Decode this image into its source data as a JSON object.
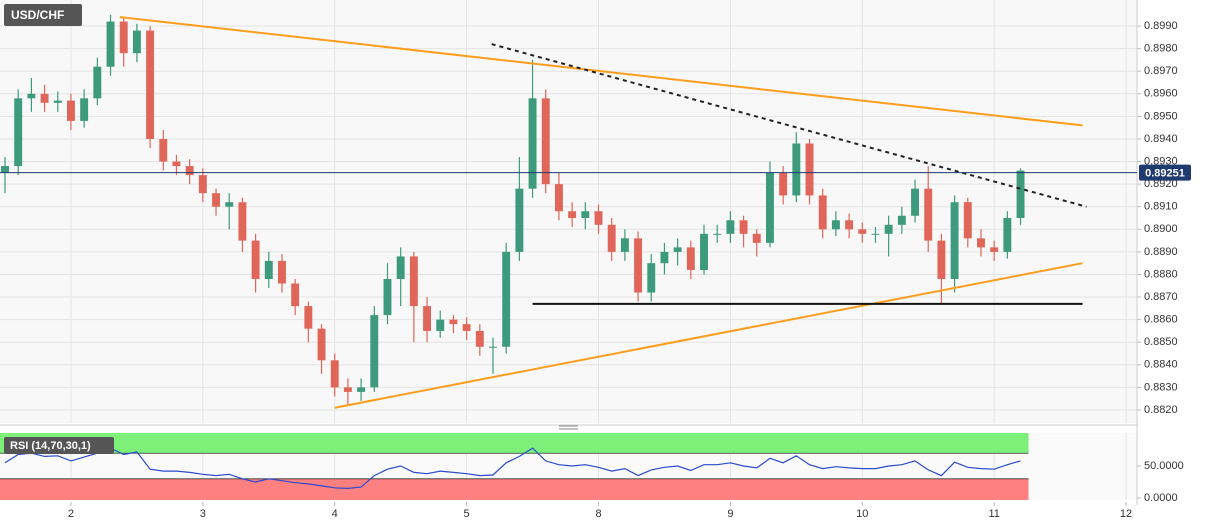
{
  "chart_data": [
    {
      "type": "candlestick",
      "title": "USD/CHF",
      "x": [
        -0.5,
        -0.4,
        -0.3,
        -0.2,
        -0.1,
        0,
        0.1,
        0.2,
        0.3,
        0.4,
        0.5,
        0.6,
        0.7,
        0.8,
        0.9,
        1,
        1.1,
        1.2,
        1.3,
        1.4,
        1.5,
        1.6,
        1.7,
        1.8,
        1.9,
        2,
        2.1,
        2.2,
        2.3,
        2.4,
        2.5,
        2.6,
        2.7,
        2.8,
        2.9,
        3,
        3.1,
        3.2,
        3.3,
        3.4,
        3.5,
        3.6,
        3.7,
        3.8,
        3.9,
        4,
        4.1,
        4.2,
        4.3,
        4.4,
        4.5,
        4.6,
        4.7,
        4.8,
        4.9,
        5,
        5.1,
        5.2,
        5.3,
        5.4,
        5.5,
        5.6,
        5.7,
        5.8,
        5.9,
        6,
        6.1,
        6.2,
        6.3,
        6.4,
        6.5,
        6.6,
        6.7,
        6.8,
        6.9,
        7,
        7.1,
        7.2
      ],
      "open": [
        0.8925,
        0.8928,
        0.8958,
        0.896,
        0.8956,
        0.8957,
        0.8948,
        0.8958,
        0.8972,
        0.8992,
        0.8978,
        0.8988,
        0.894,
        0.893,
        0.8928,
        0.8924,
        0.8916,
        0.891,
        0.8912,
        0.8895,
        0.8878,
        0.8886,
        0.8876,
        0.8866,
        0.8856,
        0.8842,
        0.883,
        0.8828,
        0.883,
        0.8862,
        0.8878,
        0.8888,
        0.8866,
        0.8855,
        0.886,
        0.8858,
        0.8855,
        0.8848,
        0.8848,
        0.889,
        0.8918,
        0.8958,
        0.892,
        0.8908,
        0.8905,
        0.8908,
        0.8902,
        0.889,
        0.8896,
        0.8872,
        0.8885,
        0.889,
        0.8892,
        0.8882,
        0.8898,
        0.8898,
        0.8904,
        0.8898,
        0.8894,
        0.8925,
        0.8915,
        0.8938,
        0.8915,
        0.89,
        0.8904,
        0.89,
        0.8898,
        0.8898,
        0.8902,
        0.8906,
        0.8918,
        0.8895,
        0.8878,
        0.8912,
        0.8896,
        0.8892,
        0.889,
        0.8905
      ],
      "high": [
        0.8932,
        0.8962,
        0.8967,
        0.8964,
        0.8961,
        0.896,
        0.8962,
        0.8976,
        0.8995,
        0.8994,
        0.8991,
        0.899,
        0.8944,
        0.8933,
        0.8931,
        0.8927,
        0.8918,
        0.8916,
        0.8914,
        0.8898,
        0.889,
        0.8889,
        0.8878,
        0.8868,
        0.8858,
        0.8845,
        0.8834,
        0.8834,
        0.8866,
        0.8885,
        0.8892,
        0.889,
        0.887,
        0.8864,
        0.8862,
        0.8861,
        0.8858,
        0.8852,
        0.8894,
        0.8932,
        0.8975,
        0.8962,
        0.8925,
        0.8912,
        0.8912,
        0.8911,
        0.8905,
        0.89,
        0.8899,
        0.8889,
        0.8894,
        0.8896,
        0.8895,
        0.8902,
        0.8902,
        0.8908,
        0.8906,
        0.89,
        0.893,
        0.8928,
        0.8943,
        0.894,
        0.8918,
        0.8908,
        0.8907,
        0.8903,
        0.8901,
        0.8906,
        0.891,
        0.8922,
        0.8928,
        0.8898,
        0.8915,
        0.8914,
        0.89,
        0.8895,
        0.8908,
        0.8927
      ],
      "low": [
        0.8916,
        0.8924,
        0.8952,
        0.8952,
        0.8952,
        0.8944,
        0.8945,
        0.8955,
        0.8968,
        0.8972,
        0.8974,
        0.8936,
        0.8926,
        0.8924,
        0.892,
        0.8912,
        0.8906,
        0.89,
        0.889,
        0.8872,
        0.8874,
        0.8872,
        0.8862,
        0.885,
        0.8836,
        0.8826,
        0.8822,
        0.8824,
        0.8828,
        0.8858,
        0.8866,
        0.885,
        0.885,
        0.8852,
        0.8854,
        0.8851,
        0.8844,
        0.8836,
        0.8845,
        0.8886,
        0.8914,
        0.8916,
        0.8904,
        0.8901,
        0.89,
        0.8898,
        0.8886,
        0.8886,
        0.8868,
        0.8868,
        0.888,
        0.8884,
        0.8878,
        0.888,
        0.8894,
        0.8894,
        0.8892,
        0.8888,
        0.8892,
        0.8911,
        0.8912,
        0.8911,
        0.8896,
        0.8897,
        0.8896,
        0.8894,
        0.8894,
        0.8888,
        0.8898,
        0.8903,
        0.889,
        0.8867,
        0.8872,
        0.8892,
        0.8888,
        0.8886,
        0.8887,
        0.8902
      ],
      "close": [
        0.8928,
        0.8958,
        0.896,
        0.8956,
        0.8957,
        0.8948,
        0.8958,
        0.8972,
        0.8992,
        0.8978,
        0.8988,
        0.894,
        0.893,
        0.8928,
        0.8924,
        0.8916,
        0.891,
        0.8912,
        0.8895,
        0.8878,
        0.8886,
        0.8876,
        0.8866,
        0.8856,
        0.8842,
        0.883,
        0.8828,
        0.883,
        0.8862,
        0.8878,
        0.8888,
        0.8866,
        0.8855,
        0.886,
        0.8858,
        0.8855,
        0.8848,
        0.8848,
        0.889,
        0.8918,
        0.8958,
        0.892,
        0.8908,
        0.8905,
        0.8908,
        0.8902,
        0.889,
        0.8896,
        0.8872,
        0.8885,
        0.889,
        0.8892,
        0.8882,
        0.8898,
        0.8898,
        0.8904,
        0.8898,
        0.8894,
        0.8925,
        0.8915,
        0.8938,
        0.8915,
        0.89,
        0.8904,
        0.89,
        0.8898,
        0.8898,
        0.8902,
        0.8906,
        0.8918,
        0.8895,
        0.8878,
        0.8912,
        0.8896,
        0.8892,
        0.889,
        0.8905,
        0.8926
      ],
      "up_color": "#3d9a7c",
      "down_color": "#e0665a",
      "xlim": [
        -0.538,
        8.083
      ],
      "xticks": [
        {
          "value": 0,
          "label": "2"
        },
        {
          "value": 1,
          "label": "3"
        },
        {
          "value": 2,
          "label": "4"
        },
        {
          "value": 3,
          "label": "5"
        },
        {
          "value": 4,
          "label": "8"
        },
        {
          "value": 5,
          "label": "9"
        },
        {
          "value": 6,
          "label": "10"
        },
        {
          "value": 7,
          "label": "11"
        },
        {
          "value": 8,
          "label": "12"
        }
      ],
      "ylim": [
        0.881423,
        0.900154
      ],
      "yticks": [
        {
          "value": 0.882,
          "label": "0.8820"
        },
        {
          "value": 0.883,
          "label": "0.8830"
        },
        {
          "value": 0.884,
          "label": "0.8840"
        },
        {
          "value": 0.885,
          "label": "0.8850"
        },
        {
          "value": 0.886,
          "label": "0.8860"
        },
        {
          "value": 0.887,
          "label": "0.8870"
        },
        {
          "value": 0.888,
          "label": "0.8880"
        },
        {
          "value": 0.889,
          "label": "0.8890"
        },
        {
          "value": 0.89,
          "label": "0.8900"
        },
        {
          "value": 0.891,
          "label": "0.8910"
        },
        {
          "value": 0.892,
          "label": "0.8920"
        },
        {
          "value": 0.893,
          "label": "0.8930"
        },
        {
          "value": 0.894,
          "label": "0.8940"
        },
        {
          "value": 0.895,
          "label": "0.8950"
        },
        {
          "value": 0.896,
          "label": "0.8960"
        },
        {
          "value": 0.897,
          "label": "0.8970"
        },
        {
          "value": 0.898,
          "label": "0.8980"
        },
        {
          "value": 0.899,
          "label": "0.8990"
        }
      ],
      "grid": true,
      "last_price": 0.89251,
      "last_price_color": "#1f3a6e",
      "trend_lines": [
        {
          "x": [
            0.37,
            7.67
          ],
          "y": [
            0.8994,
            0.8946
          ],
          "color": "#ff9d1c",
          "style": "solid"
        },
        {
          "x": [
            2.0,
            7.67
          ],
          "y": [
            0.8821,
            0.8885
          ],
          "color": "#ff9d1c",
          "style": "solid"
        },
        {
          "x": [
            3.19,
            7.7
          ],
          "y": [
            0.8982,
            0.891
          ],
          "color": "#222222",
          "style": "dotted"
        },
        {
          "x": [
            3.5,
            7.67
          ],
          "y": [
            0.8867,
            0.8867
          ],
          "color": "#111111",
          "style": "solid"
        }
      ]
    },
    {
      "type": "rsi",
      "title": "RSI (14,70,30,1)",
      "color": "#2a4ad0",
      "values": [
        55,
        68,
        70,
        65,
        66,
        58,
        64,
        70,
        78,
        68,
        72,
        45,
        42,
        42,
        40,
        37,
        35,
        37,
        30,
        25,
        30,
        27,
        24,
        22,
        19,
        16,
        15,
        17,
        35,
        45,
        50,
        40,
        38,
        42,
        40,
        38,
        35,
        36,
        55,
        65,
        78,
        58,
        52,
        50,
        52,
        48,
        42,
        46,
        35,
        44,
        48,
        50,
        43,
        52,
        52,
        55,
        50,
        47,
        62,
        55,
        66,
        52,
        46,
        49,
        47,
        46,
        46,
        50,
        52,
        58,
        44,
        35,
        56,
        48,
        46,
        45,
        52,
        58
      ],
      "ylim": [
        -3.1,
        101.6
      ],
      "yticks": [
        {
          "value": 50,
          "label": "50.0000"
        },
        {
          "value": 0,
          "label": "0.0000"
        }
      ],
      "overbought": 70,
      "oversold": 30,
      "overbought_color": "#7ef07a",
      "oversold_color": "#ff8080"
    }
  ]
}
